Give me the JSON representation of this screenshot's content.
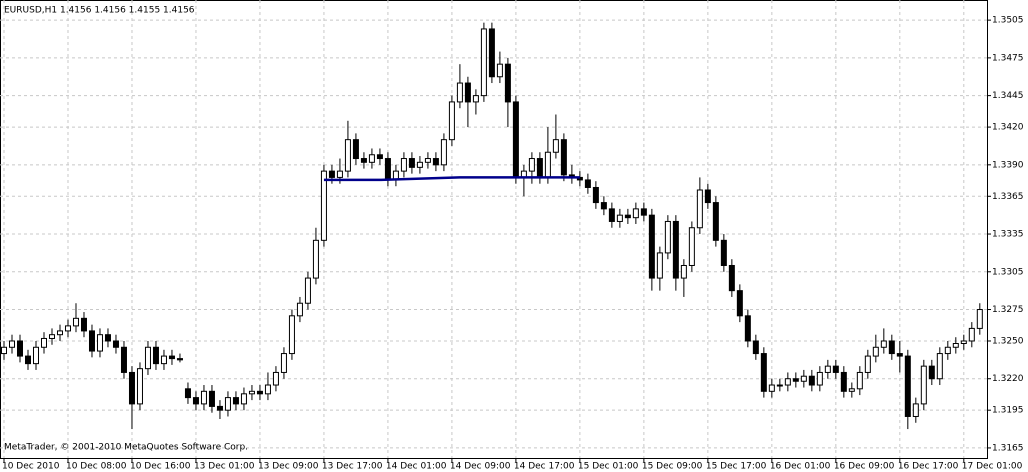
{
  "chart_data": {
    "type": "candlestick",
    "title": "EURUSD,H1  1.4156 1.4156 1.4155 1.4156",
    "footer": "MetaTrader, © 2001-2010 MetaQuotes Software Corp.",
    "up_color": "#ffffff",
    "down_color": "#000000",
    "line_color": "#000000",
    "grid": true,
    "xlim": [
      -0.5,
      122.9
    ],
    "xticks": [
      {
        "value": 0,
        "label": "10 Dec 2010"
      },
      {
        "value": 8,
        "label": "10 Dec 08:00"
      },
      {
        "value": 16,
        "label": "10 Dec 16:00"
      },
      {
        "value": 24,
        "label": "13 Dec 01:00"
      },
      {
        "value": 32,
        "label": "13 Dec 09:00"
      },
      {
        "value": 40,
        "label": "13 Dec 17:00"
      },
      {
        "value": 48,
        "label": "14 Dec 01:00"
      },
      {
        "value": 56,
        "label": "14 Dec 09:00"
      },
      {
        "value": 64,
        "label": "14 Dec 17:00"
      },
      {
        "value": 72,
        "label": "15 Dec 01:00"
      },
      {
        "value": 80,
        "label": "15 Dec 09:00"
      },
      {
        "value": 88,
        "label": "15 Dec 17:00"
      },
      {
        "value": 96,
        "label": "16 Dec 01:00"
      },
      {
        "value": 104,
        "label": "16 Dec 09:00"
      },
      {
        "value": 112,
        "label": "16 Dec 17:00"
      },
      {
        "value": 120,
        "label": "17 Dec 01:00"
      }
    ],
    "ylim": [
      1.3157,
      1.3521
    ],
    "yticks": [
      1.3505,
      1.3475,
      1.3445,
      {
        "value": 1.342,
        "label": "1.3420"
      },
      {
        "value": 1.339,
        "label": "1.3390"
      },
      1.3365,
      1.3335,
      1.3305,
      1.3275,
      {
        "value": 1.325,
        "label": "1.3250"
      },
      {
        "value": 1.322,
        "label": "1.3220"
      },
      1.3195,
      1.3165
    ],
    "open": [
      1.324,
      1.3245,
      1.325,
      1.3238,
      1.3232,
      1.3245,
      1.3252,
      1.3255,
      1.3258,
      1.3262,
      1.3268,
      1.3258,
      1.3242,
      1.3255,
      1.325,
      1.3245,
      1.3225,
      1.32,
      1.3228,
      1.3245,
      1.3232,
      1.3238,
      1.3236,
      1.3212,
      1.3205,
      1.32,
      1.321,
      1.3198,
      1.3195,
      1.3205,
      1.32,
      1.3208,
      1.321,
      1.3208,
      1.3215,
      1.3225,
      1.324,
      1.327,
      1.328,
      1.33,
      1.333,
      1.3385,
      1.338,
      1.3385,
      1.341,
      1.3395,
      1.3392,
      1.3398,
      1.3395,
      1.3378,
      1.3385,
      1.3395,
      1.3388,
      1.3392,
      1.3395,
      1.339,
      1.341,
      1.344,
      1.3455,
      1.344,
      1.3445,
      1.3498,
      1.346,
      1.347,
      1.344,
      1.338,
      1.3385,
      1.3395,
      1.338,
      1.34,
      1.341,
      1.3382,
      1.338,
      1.3378,
      1.3372,
      1.336,
      1.3355,
      1.3345,
      1.335,
      1.3348,
      1.3355,
      1.335,
      1.33,
      1.332,
      1.3345,
      1.33,
      1.331,
      1.334,
      1.337,
      1.336,
      1.333,
      1.331,
      1.329,
      1.327,
      1.325,
      1.324,
      1.321,
      1.3215,
      1.3215,
      1.322,
      1.3218,
      1.3222,
      1.3215,
      1.3225,
      1.323,
      1.3225,
      1.321,
      1.3212,
      1.3225,
      1.3238,
      1.3245,
      1.325,
      1.324,
      1.3238,
      1.319,
      1.32,
      1.323,
      1.322,
      1.324,
      1.3245,
      1.3248,
      1.325,
      1.326
    ],
    "high": [
      1.325,
      1.3255,
      1.3255,
      1.3243,
      1.325,
      1.3257,
      1.326,
      1.3263,
      1.3267,
      1.328,
      1.3273,
      1.3263,
      1.326,
      1.326,
      1.3255,
      1.325,
      1.323,
      1.3233,
      1.325,
      1.325,
      1.3243,
      1.3243,
      1.324,
      1.3217,
      1.321,
      1.3215,
      1.3215,
      1.3203,
      1.321,
      1.321,
      1.3213,
      1.3215,
      1.3215,
      1.3225,
      1.323,
      1.3245,
      1.3275,
      1.3285,
      1.3305,
      1.334,
      1.339,
      1.339,
      1.3395,
      1.3425,
      1.3415,
      1.34,
      1.3403,
      1.3403,
      1.34,
      1.339,
      1.34,
      1.34,
      1.3397,
      1.34,
      1.34,
      1.3415,
      1.3445,
      1.347,
      1.346,
      1.345,
      1.3503,
      1.3503,
      1.348,
      1.3475,
      1.3445,
      1.339,
      1.34,
      1.34,
      1.342,
      1.343,
      1.3415,
      1.339,
      1.3385,
      1.3383,
      1.3377,
      1.3365,
      1.336,
      1.3355,
      1.3355,
      1.336,
      1.336,
      1.3355,
      1.3325,
      1.335,
      1.335,
      1.3315,
      1.3345,
      1.338,
      1.3375,
      1.3365,
      1.3335,
      1.3315,
      1.3295,
      1.3275,
      1.3255,
      1.3245,
      1.322,
      1.322,
      1.3225,
      1.3225,
      1.3227,
      1.3227,
      1.323,
      1.3235,
      1.3235,
      1.323,
      1.3217,
      1.323,
      1.3243,
      1.3255,
      1.326,
      1.3255,
      1.325,
      1.3243,
      1.3205,
      1.3235,
      1.3235,
      1.3245,
      1.325,
      1.3253,
      1.3255,
      1.3265,
      1.328
    ],
    "low": [
      1.3235,
      1.324,
      1.3233,
      1.3227,
      1.3227,
      1.324,
      1.3247,
      1.325,
      1.3253,
      1.3257,
      1.3253,
      1.3237,
      1.3237,
      1.3245,
      1.324,
      1.322,
      1.318,
      1.3195,
      1.3223,
      1.3227,
      1.3227,
      1.3231,
      1.3233,
      1.32,
      1.3195,
      1.3195,
      1.3193,
      1.3188,
      1.319,
      1.3195,
      1.3195,
      1.3203,
      1.3203,
      1.3203,
      1.321,
      1.322,
      1.3235,
      1.3265,
      1.3275,
      1.3295,
      1.3325,
      1.3375,
      1.3375,
      1.338,
      1.339,
      1.3387,
      1.3387,
      1.339,
      1.3373,
      1.3373,
      1.338,
      1.3383,
      1.3383,
      1.3387,
      1.3385,
      1.3385,
      1.3405,
      1.3435,
      1.342,
      1.343,
      1.344,
      1.3455,
      1.3455,
      1.342,
      1.3375,
      1.3365,
      1.3375,
      1.3375,
      1.3375,
      1.3395,
      1.3377,
      1.3375,
      1.3373,
      1.3367,
      1.3355,
      1.335,
      1.334,
      1.334,
      1.3343,
      1.3343,
      1.3345,
      1.329,
      1.329,
      1.3315,
      1.329,
      1.3285,
      1.3305,
      1.3335,
      1.3355,
      1.3325,
      1.3305,
      1.3285,
      1.3265,
      1.3245,
      1.3235,
      1.3205,
      1.3205,
      1.321,
      1.321,
      1.3213,
      1.3213,
      1.321,
      1.321,
      1.322,
      1.322,
      1.3205,
      1.3205,
      1.3207,
      1.322,
      1.3233,
      1.324,
      1.3235,
      1.3225,
      1.318,
      1.3185,
      1.3195,
      1.3215,
      1.3215,
      1.3235,
      1.324,
      1.3243,
      1.3245,
      1.3255
    ],
    "close": [
      1.3245,
      1.325,
      1.3238,
      1.3232,
      1.3245,
      1.3252,
      1.3255,
      1.3258,
      1.3262,
      1.3268,
      1.3258,
      1.3242,
      1.3255,
      1.325,
      1.3245,
      1.3225,
      1.32,
      1.3228,
      1.3245,
      1.3232,
      1.3238,
      1.3236,
      1.3235,
      1.3205,
      1.32,
      1.321,
      1.3198,
      1.3195,
      1.3205,
      1.32,
      1.3208,
      1.321,
      1.3208,
      1.3215,
      1.3225,
      1.324,
      1.327,
      1.328,
      1.33,
      1.333,
      1.3385,
      1.338,
      1.3385,
      1.341,
      1.3395,
      1.3392,
      1.3398,
      1.3395,
      1.3378,
      1.3385,
      1.3395,
      1.3388,
      1.3392,
      1.3395,
      1.339,
      1.341,
      1.344,
      1.3455,
      1.344,
      1.3445,
      1.3498,
      1.346,
      1.347,
      1.344,
      1.338,
      1.3385,
      1.3395,
      1.338,
      1.34,
      1.341,
      1.3382,
      1.338,
      1.3378,
      1.3372,
      1.336,
      1.3355,
      1.3345,
      1.335,
      1.3348,
      1.3355,
      1.335,
      1.33,
      1.332,
      1.3345,
      1.33,
      1.331,
      1.334,
      1.337,
      1.336,
      1.333,
      1.331,
      1.329,
      1.327,
      1.325,
      1.324,
      1.321,
      1.3215,
      1.3215,
      1.322,
      1.3218,
      1.3222,
      1.3215,
      1.3225,
      1.323,
      1.3225,
      1.321,
      1.3212,
      1.3225,
      1.3238,
      1.3245,
      1.325,
      1.324,
      1.3238,
      1.319,
      1.32,
      1.323,
      1.322,
      1.324,
      1.3245,
      1.3248,
      1.325,
      1.326,
      1.3275
    ],
    "trend_line": {
      "color": "#00008b",
      "x": [
        40,
        47,
        57,
        72
      ],
      "values": [
        1.3378,
        1.3378,
        1.338,
        1.338
      ]
    }
  }
}
